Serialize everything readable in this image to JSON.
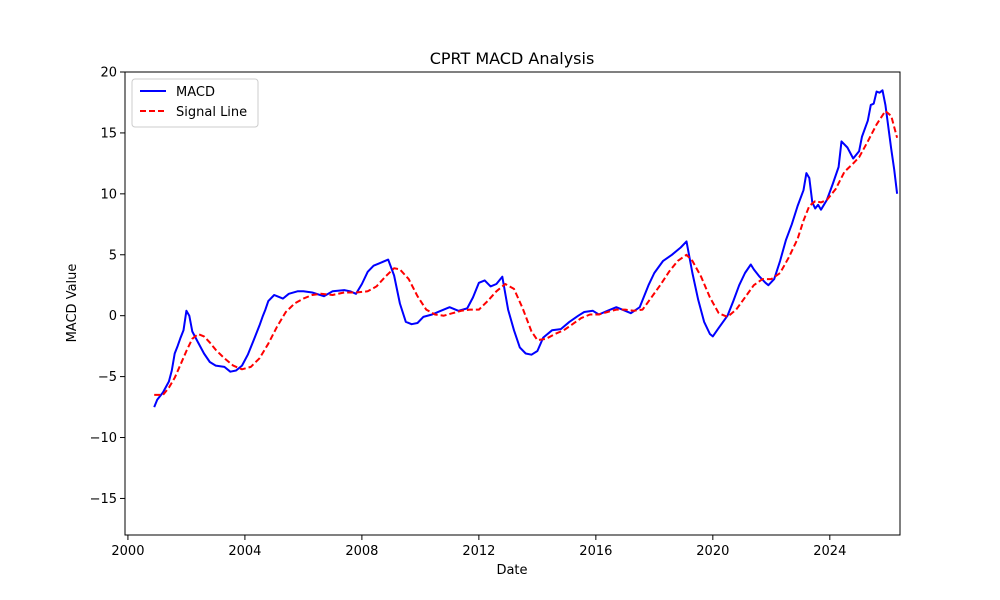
{
  "chart_data": {
    "type": "line",
    "title": "CPRT MACD Analysis",
    "xlabel": "Date",
    "ylabel": "MACD Value",
    "xlim": [
      1999.9,
      2026.4
    ],
    "ylim": [
      -18,
      20
    ],
    "x_ticks": [
      2000,
      2004,
      2008,
      2012,
      2016,
      2020,
      2024
    ],
    "x_tick_labels": [
      "2000",
      "2004",
      "2008",
      "2012",
      "2016",
      "2020",
      "2024"
    ],
    "y_ticks": [
      -15,
      -10,
      -5,
      0,
      5,
      10,
      15,
      20
    ],
    "y_tick_labels": [
      "−15",
      "−10",
      "−5",
      "0",
      "5",
      "10",
      "15",
      "20"
    ],
    "grid": false,
    "legend": {
      "position": "top-left"
    },
    "series": [
      {
        "name": "MACD",
        "color": "#0000ff",
        "style": "solid",
        "points": [
          [
            2000.9,
            -7.5
          ],
          [
            2001.0,
            -6.9
          ],
          [
            2001.2,
            -6.3
          ],
          [
            2001.4,
            -5.4
          ],
          [
            2001.5,
            -4.5
          ],
          [
            2001.6,
            -3.1
          ],
          [
            2001.7,
            -2.5
          ],
          [
            2001.8,
            -1.8
          ],
          [
            2001.9,
            -1.2
          ],
          [
            2002.0,
            0.4
          ],
          [
            2002.1,
            0.0
          ],
          [
            2002.2,
            -1.3
          ],
          [
            2002.4,
            -2.2
          ],
          [
            2002.6,
            -3.1
          ],
          [
            2002.8,
            -3.8
          ],
          [
            2003.0,
            -4.1
          ],
          [
            2003.3,
            -4.2
          ],
          [
            2003.5,
            -4.6
          ],
          [
            2003.7,
            -4.5
          ],
          [
            2003.9,
            -4.1
          ],
          [
            2004.1,
            -3.2
          ],
          [
            2004.3,
            -2.0
          ],
          [
            2004.5,
            -0.8
          ],
          [
            2004.6,
            -0.1
          ],
          [
            2004.7,
            0.5
          ],
          [
            2004.8,
            1.2
          ],
          [
            2005.0,
            1.7
          ],
          [
            2005.1,
            1.6
          ],
          [
            2005.3,
            1.4
          ],
          [
            2005.5,
            1.8
          ],
          [
            2005.8,
            2.0
          ],
          [
            2006.0,
            2.0
          ],
          [
            2006.3,
            1.9
          ],
          [
            2006.7,
            1.6
          ],
          [
            2007.0,
            2.0
          ],
          [
            2007.4,
            2.1
          ],
          [
            2007.6,
            2.0
          ],
          [
            2007.8,
            1.8
          ],
          [
            2008.0,
            2.6
          ],
          [
            2008.2,
            3.6
          ],
          [
            2008.4,
            4.1
          ],
          [
            2008.6,
            4.3
          ],
          [
            2008.9,
            4.6
          ],
          [
            2009.1,
            3.3
          ],
          [
            2009.3,
            1.0
          ],
          [
            2009.5,
            -0.5
          ],
          [
            2009.7,
            -0.7
          ],
          [
            2009.9,
            -0.6
          ],
          [
            2010.1,
            -0.1
          ],
          [
            2010.4,
            0.1
          ],
          [
            2010.7,
            0.4
          ],
          [
            2011.0,
            0.7
          ],
          [
            2011.3,
            0.4
          ],
          [
            2011.6,
            0.6
          ],
          [
            2011.8,
            1.5
          ],
          [
            2012.0,
            2.7
          ],
          [
            2012.2,
            2.9
          ],
          [
            2012.4,
            2.4
          ],
          [
            2012.6,
            2.6
          ],
          [
            2012.8,
            3.2
          ],
          [
            2013.0,
            0.5
          ],
          [
            2013.2,
            -1.2
          ],
          [
            2013.4,
            -2.6
          ],
          [
            2013.6,
            -3.1
          ],
          [
            2013.8,
            -3.2
          ],
          [
            2014.0,
            -2.9
          ],
          [
            2014.2,
            -1.8
          ],
          [
            2014.5,
            -1.2
          ],
          [
            2014.8,
            -1.1
          ],
          [
            2015.1,
            -0.5
          ],
          [
            2015.4,
            0.0
          ],
          [
            2015.6,
            0.3
          ],
          [
            2015.9,
            0.4
          ],
          [
            2016.1,
            0.1
          ],
          [
            2016.4,
            0.4
          ],
          [
            2016.7,
            0.7
          ],
          [
            2016.9,
            0.5
          ],
          [
            2017.2,
            0.2
          ],
          [
            2017.5,
            0.7
          ],
          [
            2017.8,
            2.5
          ],
          [
            2018.0,
            3.5
          ],
          [
            2018.3,
            4.5
          ],
          [
            2018.6,
            5.0
          ],
          [
            2018.9,
            5.6
          ],
          [
            2019.1,
            6.1
          ],
          [
            2019.3,
            3.5
          ],
          [
            2019.5,
            1.3
          ],
          [
            2019.7,
            -0.5
          ],
          [
            2019.9,
            -1.5
          ],
          [
            2020.0,
            -1.7
          ],
          [
            2020.2,
            -1.0
          ],
          [
            2020.5,
            0.0
          ],
          [
            2020.7,
            1.2
          ],
          [
            2020.9,
            2.5
          ],
          [
            2021.1,
            3.5
          ],
          [
            2021.3,
            4.2
          ],
          [
            2021.4,
            3.8
          ],
          [
            2021.6,
            3.2
          ],
          [
            2021.8,
            2.7
          ],
          [
            2021.9,
            2.5
          ],
          [
            2022.1,
            3.0
          ],
          [
            2022.3,
            4.5
          ],
          [
            2022.5,
            6.2
          ],
          [
            2022.7,
            7.5
          ],
          [
            2022.9,
            9.0
          ],
          [
            2023.1,
            10.3
          ],
          [
            2023.2,
            11.7
          ],
          [
            2023.3,
            11.3
          ],
          [
            2023.4,
            9.3
          ],
          [
            2023.5,
            8.8
          ],
          [
            2023.6,
            9.1
          ],
          [
            2023.7,
            8.7
          ],
          [
            2023.9,
            9.5
          ],
          [
            2024.1,
            10.8
          ],
          [
            2024.3,
            12.2
          ],
          [
            2024.4,
            14.3
          ],
          [
            2024.6,
            13.8
          ],
          [
            2024.8,
            12.9
          ],
          [
            2025.0,
            13.5
          ],
          [
            2025.1,
            14.7
          ],
          [
            2025.3,
            16.0
          ],
          [
            2025.4,
            17.3
          ],
          [
            2025.5,
            17.4
          ],
          [
            2025.6,
            18.4
          ],
          [
            2025.7,
            18.3
          ],
          [
            2025.8,
            18.5
          ],
          [
            2025.9,
            17.3
          ],
          [
            2026.0,
            15.5
          ],
          [
            2026.1,
            13.7
          ],
          [
            2026.2,
            12.0
          ],
          [
            2026.3,
            10.0
          ]
        ]
      },
      {
        "name": "Signal Line",
        "color": "#ff0000",
        "style": "dashed",
        "points": [
          [
            2000.9,
            -6.5
          ],
          [
            2001.2,
            -6.5
          ],
          [
            2001.4,
            -5.9
          ],
          [
            2001.6,
            -5.1
          ],
          [
            2001.8,
            -4.0
          ],
          [
            2002.0,
            -2.9
          ],
          [
            2002.2,
            -1.9
          ],
          [
            2002.4,
            -1.5
          ],
          [
            2002.6,
            -1.7
          ],
          [
            2002.8,
            -2.2
          ],
          [
            2003.0,
            -2.8
          ],
          [
            2003.3,
            -3.5
          ],
          [
            2003.6,
            -4.1
          ],
          [
            2003.9,
            -4.4
          ],
          [
            2004.2,
            -4.2
          ],
          [
            2004.5,
            -3.5
          ],
          [
            2004.8,
            -2.3
          ],
          [
            2005.1,
            -0.9
          ],
          [
            2005.4,
            0.3
          ],
          [
            2005.7,
            1.0
          ],
          [
            2006.0,
            1.4
          ],
          [
            2006.3,
            1.7
          ],
          [
            2006.6,
            1.8
          ],
          [
            2007.0,
            1.7
          ],
          [
            2007.4,
            1.9
          ],
          [
            2007.8,
            1.9
          ],
          [
            2008.2,
            2.0
          ],
          [
            2008.5,
            2.4
          ],
          [
            2008.8,
            3.2
          ],
          [
            2009.1,
            3.9
          ],
          [
            2009.3,
            3.8
          ],
          [
            2009.6,
            3.0
          ],
          [
            2009.9,
            1.6
          ],
          [
            2010.2,
            0.5
          ],
          [
            2010.5,
            0.1
          ],
          [
            2010.8,
            0.0
          ],
          [
            2011.1,
            0.2
          ],
          [
            2011.4,
            0.4
          ],
          [
            2011.7,
            0.5
          ],
          [
            2012.0,
            0.5
          ],
          [
            2012.3,
            1.2
          ],
          [
            2012.6,
            2.0
          ],
          [
            2012.9,
            2.6
          ],
          [
            2013.2,
            2.2
          ],
          [
            2013.5,
            0.6
          ],
          [
            2013.8,
            -1.3
          ],
          [
            2014.0,
            -2.0
          ],
          [
            2014.3,
            -1.9
          ],
          [
            2014.6,
            -1.5
          ],
          [
            2014.9,
            -1.2
          ],
          [
            2015.2,
            -0.7
          ],
          [
            2015.5,
            -0.2
          ],
          [
            2015.8,
            0.1
          ],
          [
            2016.1,
            0.1
          ],
          [
            2016.4,
            0.3
          ],
          [
            2016.7,
            0.5
          ],
          [
            2017.0,
            0.5
          ],
          [
            2017.3,
            0.4
          ],
          [
            2017.6,
            0.5
          ],
          [
            2017.9,
            1.5
          ],
          [
            2018.2,
            2.5
          ],
          [
            2018.5,
            3.6
          ],
          [
            2018.8,
            4.5
          ],
          [
            2019.1,
            5.0
          ],
          [
            2019.3,
            4.5
          ],
          [
            2019.6,
            3.2
          ],
          [
            2019.9,
            1.5
          ],
          [
            2020.2,
            0.2
          ],
          [
            2020.5,
            -0.1
          ],
          [
            2020.8,
            0.5
          ],
          [
            2021.1,
            1.5
          ],
          [
            2021.4,
            2.5
          ],
          [
            2021.7,
            3.0
          ],
          [
            2022.0,
            3.0
          ],
          [
            2022.3,
            3.5
          ],
          [
            2022.6,
            4.8
          ],
          [
            2022.9,
            6.3
          ],
          [
            2023.1,
            7.8
          ],
          [
            2023.3,
            9.0
          ],
          [
            2023.5,
            9.4
          ],
          [
            2023.7,
            9.3
          ],
          [
            2023.9,
            9.5
          ],
          [
            2024.2,
            10.4
          ],
          [
            2024.5,
            11.8
          ],
          [
            2024.8,
            12.5
          ],
          [
            2025.0,
            13.0
          ],
          [
            2025.3,
            14.3
          ],
          [
            2025.6,
            15.7
          ],
          [
            2025.9,
            16.8
          ],
          [
            2026.1,
            16.4
          ],
          [
            2026.3,
            14.6
          ]
        ]
      }
    ]
  }
}
